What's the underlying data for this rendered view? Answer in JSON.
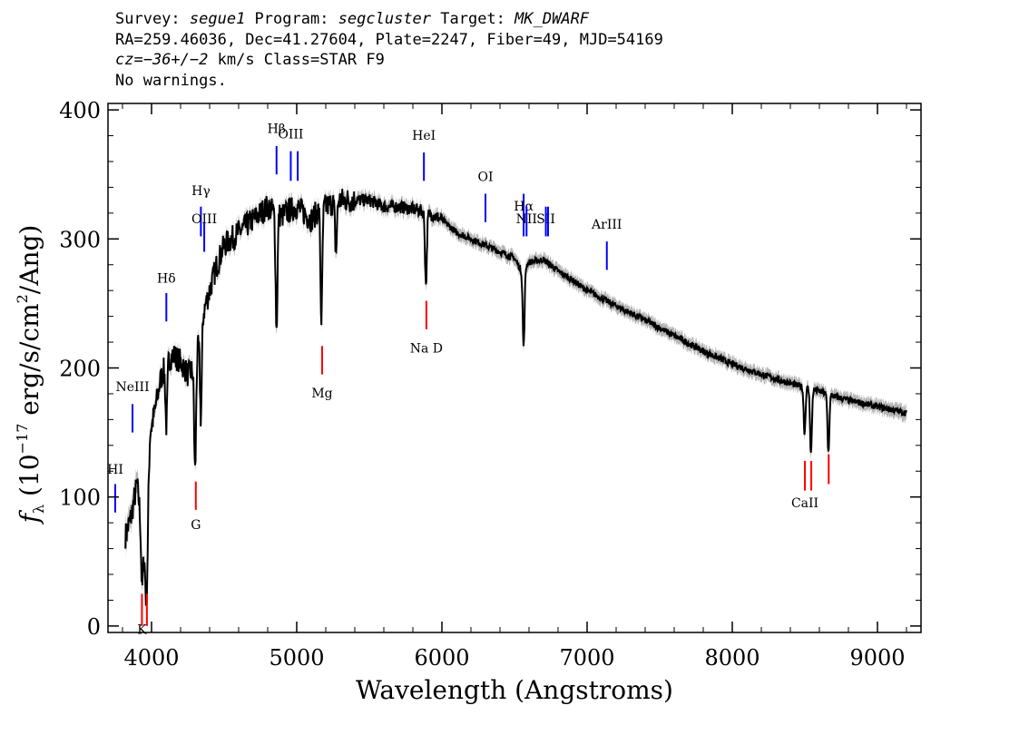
{
  "header": {
    "line1": [
      {
        "t": "Survey: ",
        "i": false
      },
      {
        "t": "segue1",
        "i": true
      },
      {
        "t": " Program: ",
        "i": false
      },
      {
        "t": "segcluster",
        "i": true
      },
      {
        "t": " Target: ",
        "i": false
      },
      {
        "t": "MK_DWARF",
        "i": true
      }
    ],
    "line2": "RA=259.46036, Dec=41.27604, Plate=2247, Fiber=49, MJD=54169",
    "line3": [
      {
        "t": "cz=",
        "i": true
      },
      {
        "t": "−36+/−2",
        "i": true
      },
      {
        "t": " km/s Class=STAR F9",
        "i": false
      }
    ],
    "line4": "No warnings."
  },
  "chart_data": {
    "type": "line",
    "title": "",
    "xlabel": "Wavelength (Angstroms)",
    "ylabel": "fλ (10⁻¹⁷ erg/s/cm²/Ang)",
    "ylabel_parts": {
      "f": "f",
      "sub": "λ",
      "pre": " (10",
      "exp1": "−17",
      "mid": " erg/s/cm",
      "exp2": "2",
      "post": "/Ang)"
    },
    "xlim": [
      3700,
      9300
    ],
    "ylim": [
      -5,
      405
    ],
    "xticks": [
      4000,
      5000,
      6000,
      7000,
      8000,
      9000
    ],
    "yticks": [
      0,
      100,
      200,
      300,
      400
    ],
    "grid": false,
    "colors": {
      "flux": "#000000",
      "error": "#b4b4b4",
      "emission": "#0000ff",
      "absorption": "#ff0000",
      "label": "#000000"
    },
    "series": [
      {
        "name": "flux",
        "x": [
          3820,
          3860,
          3900,
          3930,
          3960,
          3990,
          4020,
          4060,
          4100,
          4150,
          4200,
          4250,
          4300,
          4350,
          4400,
          4450,
          4500,
          4550,
          4600,
          4650,
          4700,
          4750,
          4800,
          4850,
          4900,
          4950,
          5000,
          5050,
          5100,
          5150,
          5200,
          5250,
          5300,
          5400,
          5500,
          5600,
          5700,
          5800,
          5850,
          5900,
          5950,
          6000,
          6100,
          6200,
          6300,
          6400,
          6500,
          6550,
          6600,
          6650,
          6700,
          6800,
          6900,
          7000,
          7200,
          7400,
          7600,
          7800,
          8000,
          8200,
          8400,
          8500,
          8600,
          8700,
          8800,
          9000,
          9200
        ],
        "y": [
          70,
          85,
          110,
          80,
          40,
          150,
          165,
          190,
          205,
          210,
          205,
          195,
          200,
          240,
          260,
          280,
          295,
          300,
          305,
          310,
          315,
          320,
          325,
          320,
          318,
          322,
          325,
          320,
          315,
          322,
          325,
          328,
          330,
          330,
          330,
          325,
          325,
          323,
          322,
          320,
          318,
          315,
          305,
          300,
          295,
          290,
          285,
          275,
          282,
          283,
          284,
          275,
          268,
          260,
          248,
          237,
          225,
          213,
          203,
          195,
          188,
          185,
          182,
          178,
          175,
          170,
          165
        ]
      },
      {
        "name": "error",
        "sigma": [
          10,
          9,
          8,
          7,
          6,
          5,
          5,
          5,
          5,
          5,
          5,
          5,
          5,
          5,
          5,
          5,
          5,
          5,
          5,
          5,
          5,
          5,
          5,
          5,
          5,
          5,
          5,
          5,
          5,
          5,
          5,
          5,
          5,
          5,
          5,
          5,
          5,
          5,
          5,
          5,
          5,
          5,
          5,
          5,
          5,
          5,
          5,
          5,
          5,
          5,
          5,
          5,
          5,
          5,
          5,
          5,
          5,
          5,
          5,
          5,
          5,
          5,
          5,
          5,
          5,
          5,
          6
        ]
      }
    ],
    "absorption_dips": [
      {
        "x": 3934,
        "depth": 45
      },
      {
        "x": 3968,
        "depth": 40
      },
      {
        "x": 4102,
        "depth": 50
      },
      {
        "x": 4300,
        "depth": 80
      },
      {
        "x": 4340,
        "depth": 70
      },
      {
        "x": 4861,
        "depth": 90
      },
      {
        "x": 5170,
        "depth": 85
      },
      {
        "x": 5270,
        "depth": 40
      },
      {
        "x": 5890,
        "depth": 55
      },
      {
        "x": 6563,
        "depth": 60
      },
      {
        "x": 8498,
        "depth": 35
      },
      {
        "x": 8542,
        "depth": 50
      },
      {
        "x": 8662,
        "depth": 45
      }
    ],
    "line_markers": [
      {
        "label": "Hβ",
        "x": 4861,
        "y1": 350,
        "y2": 372,
        "ly": 382,
        "kind": "emission"
      },
      {
        "label": "OIII",
        "x": 4959,
        "y1": 345,
        "y2": 368,
        "ly": 378,
        "kind": "emission"
      },
      {
        "label": "OIII",
        "x": 5007,
        "y1": 345,
        "y2": 368,
        "ly": "",
        "kind": "emission"
      },
      {
        "label": "HeI",
        "x": 5876,
        "y1": 345,
        "y2": 367,
        "ly": 377,
        "kind": "emission"
      },
      {
        "label": "OI",
        "x": 6300,
        "y1": 313,
        "y2": 335,
        "ly": 345,
        "kind": "emission"
      },
      {
        "label": "Hα",
        "x": 6563,
        "y1": 302,
        "y2": 335,
        "ly": 322,
        "kind": "emission"
      },
      {
        "label": "NII",
        "x": 6583,
        "y1": 302,
        "y2": 325,
        "ly": 312,
        "kind": "emission"
      },
      {
        "label": "SII",
        "x": 6716,
        "y1": 302,
        "y2": 325,
        "ly": 312,
        "kind": "emission"
      },
      {
        "label": "SII",
        "x": 6731,
        "y1": 302,
        "y2": 325,
        "ly": "",
        "kind": "emission"
      },
      {
        "label": "ArIII",
        "x": 7136,
        "y1": 276,
        "y2": 298,
        "ly": 308,
        "kind": "emission"
      },
      {
        "label": "Hγ",
        "x": 4340,
        "y1": 302,
        "y2": 325,
        "ly": 334,
        "kind": "emission"
      },
      {
        "label": "OIII",
        "x": 4363,
        "y1": 290,
        "y2": 313,
        "ly": 312,
        "kind": "emission"
      },
      {
        "label": "Hδ",
        "x": 4102,
        "y1": 236,
        "y2": 258,
        "ly": 266,
        "kind": "emission"
      },
      {
        "label": "NeIII",
        "x": 3869,
        "y1": 150,
        "y2": 172,
        "ly": 182,
        "kind": "emission"
      },
      {
        "label": "HI",
        "x": 3750,
        "y1": 88,
        "y2": 110,
        "ly": 118,
        "kind": "emission"
      },
      {
        "label": "Na D",
        "x": 5893,
        "y1": 230,
        "y2": 252,
        "ly": 212,
        "kind": "absorption"
      },
      {
        "label": "Mg",
        "x": 5175,
        "y1": 195,
        "y2": 217,
        "ly": 177,
        "kind": "absorption"
      },
      {
        "label": "G",
        "x": 4305,
        "y1": 90,
        "y2": 112,
        "ly": 75,
        "kind": "absorption"
      },
      {
        "label": "CaII",
        "x": 8500,
        "y1": 105,
        "y2": 128,
        "ly": 92,
        "kind": "absorption"
      },
      {
        "label": "CaII",
        "x": 8544,
        "y1": 105,
        "y2": 128,
        "ly": "",
        "kind": "absorption"
      },
      {
        "label": "CaII",
        "x": 8664,
        "y1": 110,
        "y2": 133,
        "ly": "",
        "kind": "absorption"
      },
      {
        "label": "K",
        "x": 3934,
        "y1": 0,
        "y2": 25,
        "ly": -6,
        "kind": "absorption"
      },
      {
        "label": "H",
        "x": 3968,
        "y1": 0,
        "y2": 25,
        "ly": "",
        "kind": "absorption"
      }
    ]
  }
}
